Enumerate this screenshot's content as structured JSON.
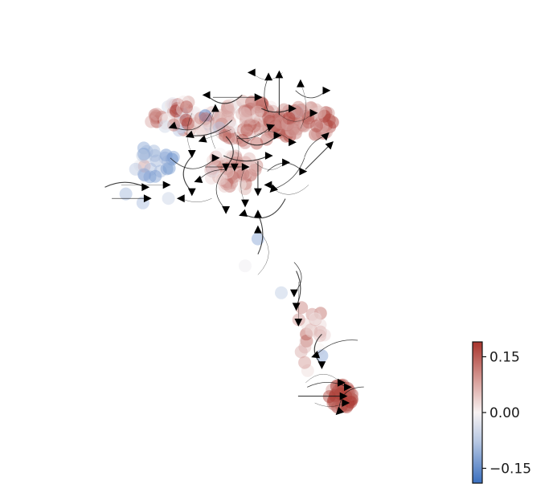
{
  "chart_data": {
    "type": "scatter",
    "title": "",
    "xlabel": "",
    "ylabel": "",
    "grid": false,
    "axes_visible": false,
    "overlay": "velocity-streamlines",
    "colormap": {
      "low": "#3a6fbf",
      "mid": "#f7f2f2",
      "high": "#a8342c"
    },
    "xlim": [
      0,
      10
    ],
    "ylim": [
      0,
      10
    ],
    "clusters": [
      {
        "cx": 3.6,
        "cy": 8.1,
        "rx": 0.85,
        "ry": 0.35,
        "n": 70,
        "mean": 0.05,
        "spread": 0.09
      },
      {
        "cx": 5.1,
        "cy": 8.0,
        "rx": 0.75,
        "ry": 0.5,
        "n": 80,
        "mean": 0.1,
        "spread": 0.06
      },
      {
        "cx": 6.3,
        "cy": 8.0,
        "rx": 0.8,
        "ry": 0.35,
        "n": 75,
        "mean": 0.11,
        "spread": 0.05
      },
      {
        "cx": 4.7,
        "cy": 6.9,
        "rx": 0.6,
        "ry": 0.45,
        "n": 50,
        "mean": 0.08,
        "spread": 0.06
      },
      {
        "cx": 2.8,
        "cy": 7.1,
        "rx": 0.6,
        "ry": 0.35,
        "n": 25,
        "mean": -0.1,
        "spread": 0.05
      },
      {
        "cx": 6.55,
        "cy": 3.3,
        "rx": 0.35,
        "ry": 0.9,
        "n": 22,
        "mean": 0.06,
        "spread": 0.05
      },
      {
        "cx": 7.25,
        "cy": 1.9,
        "rx": 0.28,
        "ry": 0.28,
        "n": 45,
        "mean": 0.16,
        "spread": 0.04
      }
    ],
    "points": [
      {
        "x": 2.2,
        "y": 6.4,
        "v": -0.09
      },
      {
        "x": 2.6,
        "y": 6.2,
        "v": -0.08
      },
      {
        "x": 3.2,
        "y": 6.3,
        "v": -0.05
      },
      {
        "x": 5.3,
        "y": 5.4,
        "v": -0.12
      },
      {
        "x": 5.0,
        "y": 4.8,
        "v": -0.01
      },
      {
        "x": 5.85,
        "y": 4.2,
        "v": -0.06
      },
      {
        "x": 6.8,
        "y": 2.8,
        "v": -0.12
      }
    ],
    "arrows": [
      {
        "x": 5.16,
        "y": 9.1,
        "dir": 180
      },
      {
        "x": 5.55,
        "y": 9.0,
        "dir": 90
      },
      {
        "x": 5.8,
        "y": 9.05,
        "dir": 90
      },
      {
        "x": 6.3,
        "y": 8.85,
        "dir": 90
      },
      {
        "x": 6.9,
        "y": 8.7,
        "dir": 0
      },
      {
        "x": 4.1,
        "y": 8.6,
        "dir": 180
      },
      {
        "x": 4.3,
        "y": 8.3,
        "dir": 90
      },
      {
        "x": 5.3,
        "y": 8.55,
        "dir": 0
      },
      {
        "x": 6.1,
        "y": 8.3,
        "dir": 0
      },
      {
        "x": 6.6,
        "y": 8.2,
        "dir": 0
      },
      {
        "x": 3.3,
        "y": 7.9,
        "dir": 200
      },
      {
        "x": 3.7,
        "y": 7.7,
        "dir": 200
      },
      {
        "x": 4.0,
        "y": 7.6,
        "dir": 200
      },
      {
        "x": 5.6,
        "y": 7.9,
        "dir": 20
      },
      {
        "x": 5.75,
        "y": 7.7,
        "dir": 0
      },
      {
        "x": 6.1,
        "y": 7.55,
        "dir": 0
      },
      {
        "x": 6.9,
        "y": 7.7,
        "dir": 45
      },
      {
        "x": 7.0,
        "y": 7.5,
        "dir": 45
      },
      {
        "x": 3.75,
        "y": 7.3,
        "dir": 270
      },
      {
        "x": 4.3,
        "y": 7.2,
        "dir": 0
      },
      {
        "x": 4.55,
        "y": 7.0,
        "dir": 270
      },
      {
        "x": 4.75,
        "y": 7.0,
        "dir": 270
      },
      {
        "x": 5.0,
        "y": 7.0,
        "dir": 0
      },
      {
        "x": 5.55,
        "y": 7.25,
        "dir": 0
      },
      {
        "x": 5.95,
        "y": 7.1,
        "dir": 0
      },
      {
        "x": 6.35,
        "y": 6.9,
        "dir": 0
      },
      {
        "x": 2.65,
        "y": 6.55,
        "dir": 0
      },
      {
        "x": 3.15,
        "y": 6.6,
        "dir": 0
      },
      {
        "x": 3.9,
        "y": 6.7,
        "dir": 200
      },
      {
        "x": 3.75,
        "y": 6.45,
        "dir": 270
      },
      {
        "x": 5.55,
        "y": 6.6,
        "dir": 180
      },
      {
        "x": 5.65,
        "y": 6.5,
        "dir": 225
      },
      {
        "x": 5.3,
        "y": 6.45,
        "dir": 270
      },
      {
        "x": 5.0,
        "y": 6.2,
        "dir": 270
      },
      {
        "x": 4.55,
        "y": 6.05,
        "dir": 270
      },
      {
        "x": 4.95,
        "y": 5.95,
        "dir": 200
      },
      {
        "x": 3.5,
        "y": 6.3,
        "dir": 180
      },
      {
        "x": 2.7,
        "y": 6.3,
        "dir": 0
      },
      {
        "x": 5.3,
        "y": 5.95,
        "dir": 90
      },
      {
        "x": 5.3,
        "y": 5.6,
        "dir": 90
      },
      {
        "x": 6.15,
        "y": 4.2,
        "dir": 270
      },
      {
        "x": 6.2,
        "y": 3.9,
        "dir": 270
      },
      {
        "x": 6.25,
        "y": 3.55,
        "dir": 270
      },
      {
        "x": 6.65,
        "y": 2.8,
        "dir": 200
      },
      {
        "x": 6.8,
        "y": 2.6,
        "dir": 270
      },
      {
        "x": 7.25,
        "y": 2.2,
        "dir": 0
      },
      {
        "x": 7.4,
        "y": 2.1,
        "dir": 0
      },
      {
        "x": 7.3,
        "y": 1.9,
        "dir": 0
      },
      {
        "x": 7.35,
        "y": 1.75,
        "dir": 0
      },
      {
        "x": 7.2,
        "y": 1.55,
        "dir": 225
      }
    ],
    "colorbar": {
      "vmin": -0.19,
      "vmax": 0.19,
      "ticks": [
        0.15,
        0.0,
        -0.15
      ],
      "tick_labels": [
        "0.15",
        "0.00",
        "−0.15"
      ]
    }
  }
}
